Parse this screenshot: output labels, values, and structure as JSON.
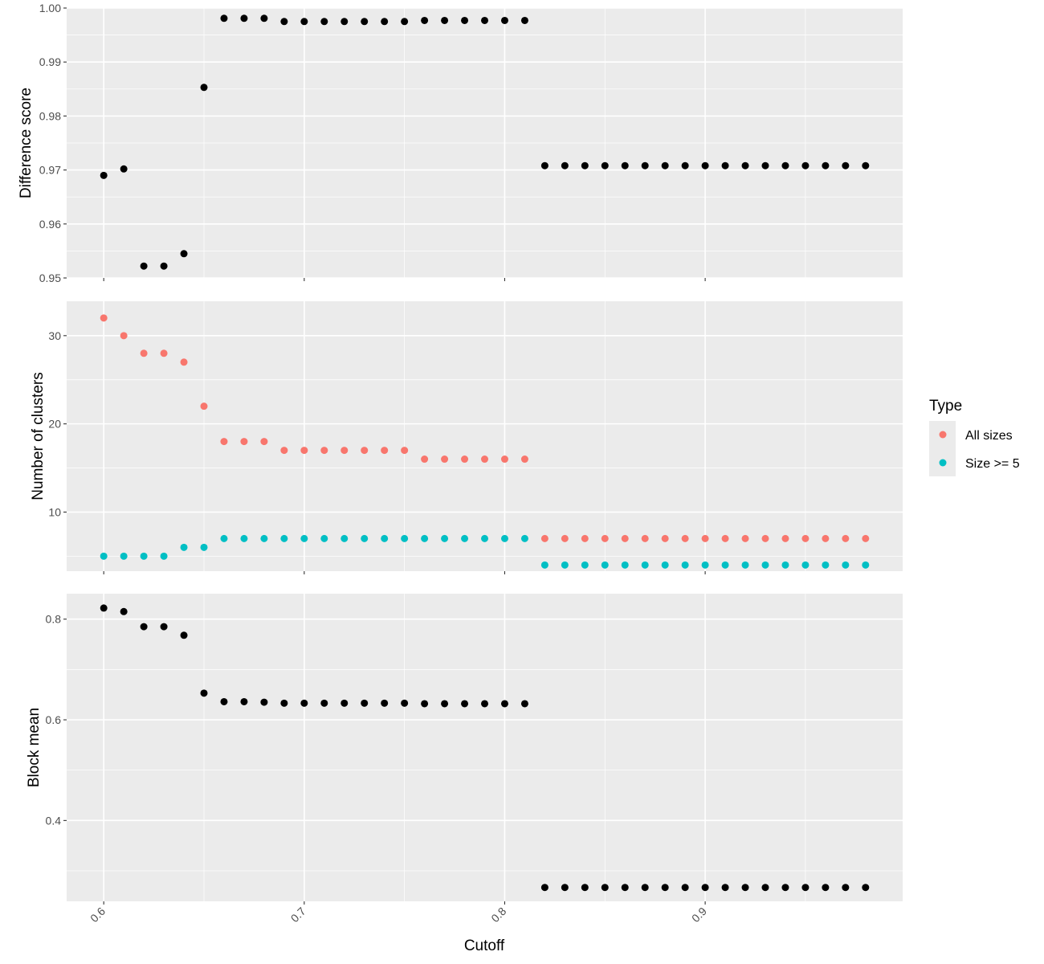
{
  "chart_data": {
    "type": "scatter",
    "xlabel": "Cutoff",
    "x_ticks": [
      0.6,
      0.7,
      0.8,
      0.9
    ],
    "x_tick_labels": [
      "0.6",
      "0.7",
      "0.8",
      "0.9"
    ],
    "xlim": [
      0.5815,
      0.9985
    ],
    "legend": {
      "title": "Type",
      "position": "right",
      "entries": [
        {
          "label": "All sizes",
          "color": "#F8766D"
        },
        {
          "label": "Size >= 5",
          "color": "#00BFC4"
        }
      ]
    },
    "panels": [
      {
        "ylabel": "Difference score",
        "ylim": [
          0.95,
          1.0
        ],
        "y_ticks": [
          0.95,
          0.96,
          0.97,
          0.98,
          0.99,
          1.0
        ],
        "y_tick_labels": [
          "0.95",
          "0.96",
          "0.97",
          "0.98",
          "0.99",
          "1.00"
        ],
        "series": [
          {
            "name": "Difference score",
            "color": "#000000",
            "x": [
              0.6,
              0.61,
              0.62,
              0.63,
              0.64,
              0.65,
              0.66,
              0.67,
              0.68,
              0.69,
              0.7,
              0.71,
              0.72,
              0.73,
              0.74,
              0.75,
              0.76,
              0.77,
              0.78,
              0.79,
              0.8,
              0.81,
              0.82,
              0.83,
              0.84,
              0.85,
              0.86,
              0.87,
              0.88,
              0.89,
              0.9,
              0.91,
              0.92,
              0.93,
              0.94,
              0.95,
              0.96,
              0.97,
              0.98
            ],
            "y": [
              0.969,
              0.9702,
              0.9522,
              0.9522,
              0.9545,
              0.9853,
              0.9981,
              0.9981,
              0.9981,
              0.9975,
              0.9975,
              0.9975,
              0.9975,
              0.9975,
              0.9975,
              0.9975,
              0.9977,
              0.9977,
              0.9977,
              0.9977,
              0.9977,
              0.9977,
              0.9708,
              0.9708,
              0.9708,
              0.9708,
              0.9708,
              0.9708,
              0.9708,
              0.9708,
              0.9708,
              0.9708,
              0.9708,
              0.9708,
              0.9708,
              0.9708,
              0.9708,
              0.9708,
              0.9708
            ]
          }
        ]
      },
      {
        "ylabel": "Number of clusters",
        "ylim": [
          3.3,
          33.9
        ],
        "y_ticks": [
          10,
          20,
          30
        ],
        "y_tick_labels": [
          "10",
          "20",
          "30"
        ],
        "series": [
          {
            "name": "All sizes",
            "color": "#F8766D",
            "x": [
              0.6,
              0.61,
              0.62,
              0.63,
              0.64,
              0.65,
              0.66,
              0.67,
              0.68,
              0.69,
              0.7,
              0.71,
              0.72,
              0.73,
              0.74,
              0.75,
              0.76,
              0.77,
              0.78,
              0.79,
              0.8,
              0.81,
              0.82,
              0.83,
              0.84,
              0.85,
              0.86,
              0.87,
              0.88,
              0.89,
              0.9,
              0.91,
              0.92,
              0.93,
              0.94,
              0.95,
              0.96,
              0.97,
              0.98
            ],
            "y": [
              32,
              30,
              28,
              28,
              27,
              22,
              18,
              18,
              18,
              17,
              17,
              17,
              17,
              17,
              17,
              17,
              16,
              16,
              16,
              16,
              16,
              16,
              7,
              7,
              7,
              7,
              7,
              7,
              7,
              7,
              7,
              7,
              7,
              7,
              7,
              7,
              7,
              7,
              7
            ]
          },
          {
            "name": "Size >= 5",
            "color": "#00BFC4",
            "x": [
              0.6,
              0.61,
              0.62,
              0.63,
              0.64,
              0.65,
              0.66,
              0.67,
              0.68,
              0.69,
              0.7,
              0.71,
              0.72,
              0.73,
              0.74,
              0.75,
              0.76,
              0.77,
              0.78,
              0.79,
              0.8,
              0.81,
              0.82,
              0.83,
              0.84,
              0.85,
              0.86,
              0.87,
              0.88,
              0.89,
              0.9,
              0.91,
              0.92,
              0.93,
              0.94,
              0.95,
              0.96,
              0.97,
              0.98
            ],
            "y": [
              5,
              5,
              5,
              5,
              6,
              6,
              7,
              7,
              7,
              7,
              7,
              7,
              7,
              7,
              7,
              7,
              7,
              7,
              7,
              7,
              7,
              7,
              4,
              4,
              4,
              4,
              4,
              4,
              4,
              4,
              4,
              4,
              4,
              4,
              4,
              4,
              4,
              4,
              4
            ]
          }
        ]
      },
      {
        "ylabel": "Block mean",
        "ylim": [
          0.2394,
          0.8506
        ],
        "y_ticks": [
          0.4,
          0.6,
          0.8
        ],
        "y_tick_labels": [
          "0.4",
          "0.6",
          "0.8"
        ],
        "series": [
          {
            "name": "Block mean",
            "color": "#000000",
            "x": [
              0.6,
              0.61,
              0.62,
              0.63,
              0.64,
              0.65,
              0.66,
              0.67,
              0.68,
              0.69,
              0.7,
              0.71,
              0.72,
              0.73,
              0.74,
              0.75,
              0.76,
              0.77,
              0.78,
              0.79,
              0.8,
              0.81,
              0.82,
              0.83,
              0.84,
              0.85,
              0.86,
              0.87,
              0.88,
              0.89,
              0.9,
              0.91,
              0.92,
              0.93,
              0.94,
              0.95,
              0.96,
              0.97,
              0.98
            ],
            "y": [
              0.822,
              0.815,
              0.785,
              0.785,
              0.768,
              0.653,
              0.636,
              0.636,
              0.635,
              0.633,
              0.633,
              0.633,
              0.633,
              0.633,
              0.633,
              0.633,
              0.632,
              0.632,
              0.632,
              0.632,
              0.632,
              0.632,
              0.267,
              0.267,
              0.267,
              0.267,
              0.267,
              0.267,
              0.267,
              0.267,
              0.267,
              0.267,
              0.267,
              0.267,
              0.267,
              0.267,
              0.267,
              0.267,
              0.267
            ]
          }
        ]
      }
    ]
  }
}
